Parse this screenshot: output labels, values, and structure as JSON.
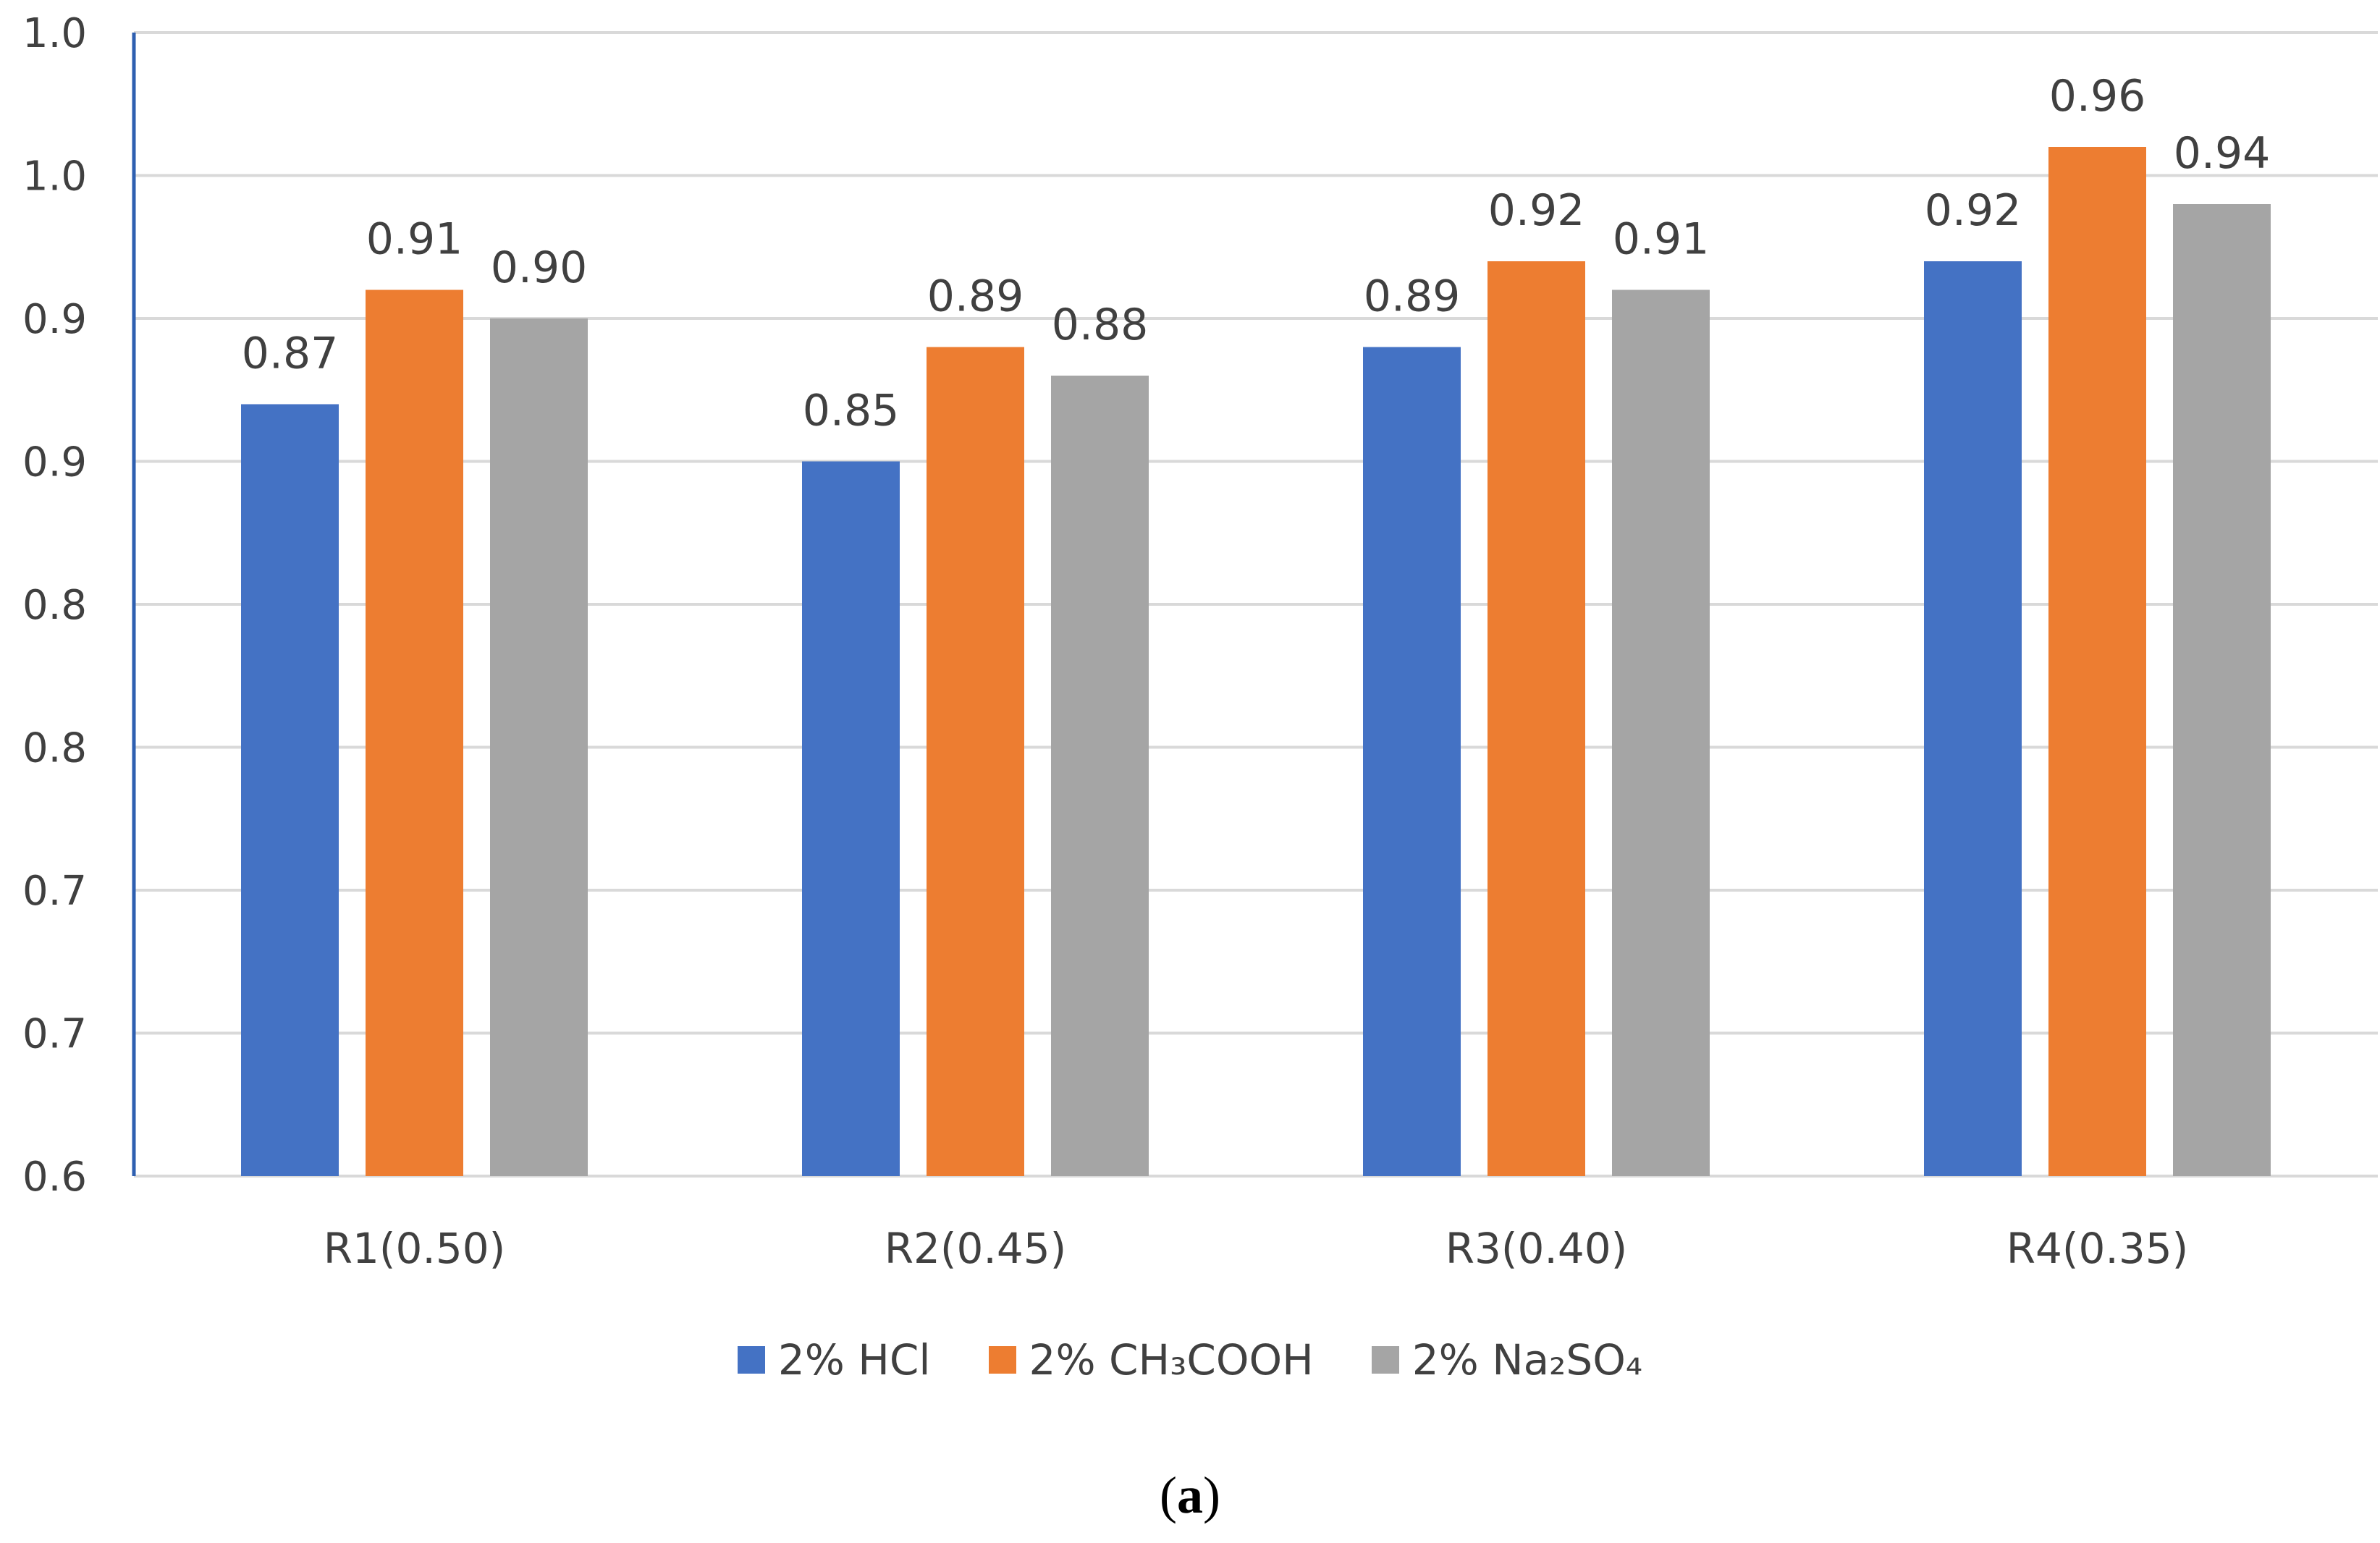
{
  "chart_data": {
    "type": "bar",
    "categories": [
      "R1(0.50)",
      "R2(0.45)",
      "R3(0.40)",
      "R4(0.35)"
    ],
    "series": [
      {
        "name": "2% HCl",
        "color": "#4472C4",
        "values": [
          0.87,
          0.85,
          0.89,
          0.92
        ],
        "labels": [
          "0.87",
          "0.85",
          "0.89",
          "0.92"
        ]
      },
      {
        "name": "2% CH₃COOH",
        "color": "#ED7D31",
        "values": [
          0.91,
          0.89,
          0.92,
          0.96
        ],
        "labels": [
          "0.91",
          "0.89",
          "0.92",
          "0.96"
        ]
      },
      {
        "name": "2% Na₂SO₄",
        "color": "#A5A5A5",
        "values": [
          0.9,
          0.88,
          0.91,
          0.94
        ],
        "labels": [
          "0.90",
          "0.88",
          "0.91",
          "0.94"
        ]
      }
    ],
    "ylim": [
      0.6,
      1.0
    ],
    "ytick_values": [
      0.6,
      0.65,
      0.7,
      0.75,
      0.8,
      0.85,
      0.9,
      0.95,
      1.0
    ],
    "ytick_labels": [
      "0.6",
      "0.7",
      "0.7",
      "0.8",
      "0.8",
      "0.9",
      "0.9",
      "1.0",
      "1.0"
    ],
    "grid": true,
    "legend_position": "bottom",
    "title": "",
    "xlabel": "",
    "ylabel": ""
  },
  "caption": {
    "open": "(",
    "letter": "a",
    "close": ")"
  },
  "colors": {
    "axis": "#2E5FB0",
    "grid": "#D9D9D9",
    "text": "#404040"
  }
}
